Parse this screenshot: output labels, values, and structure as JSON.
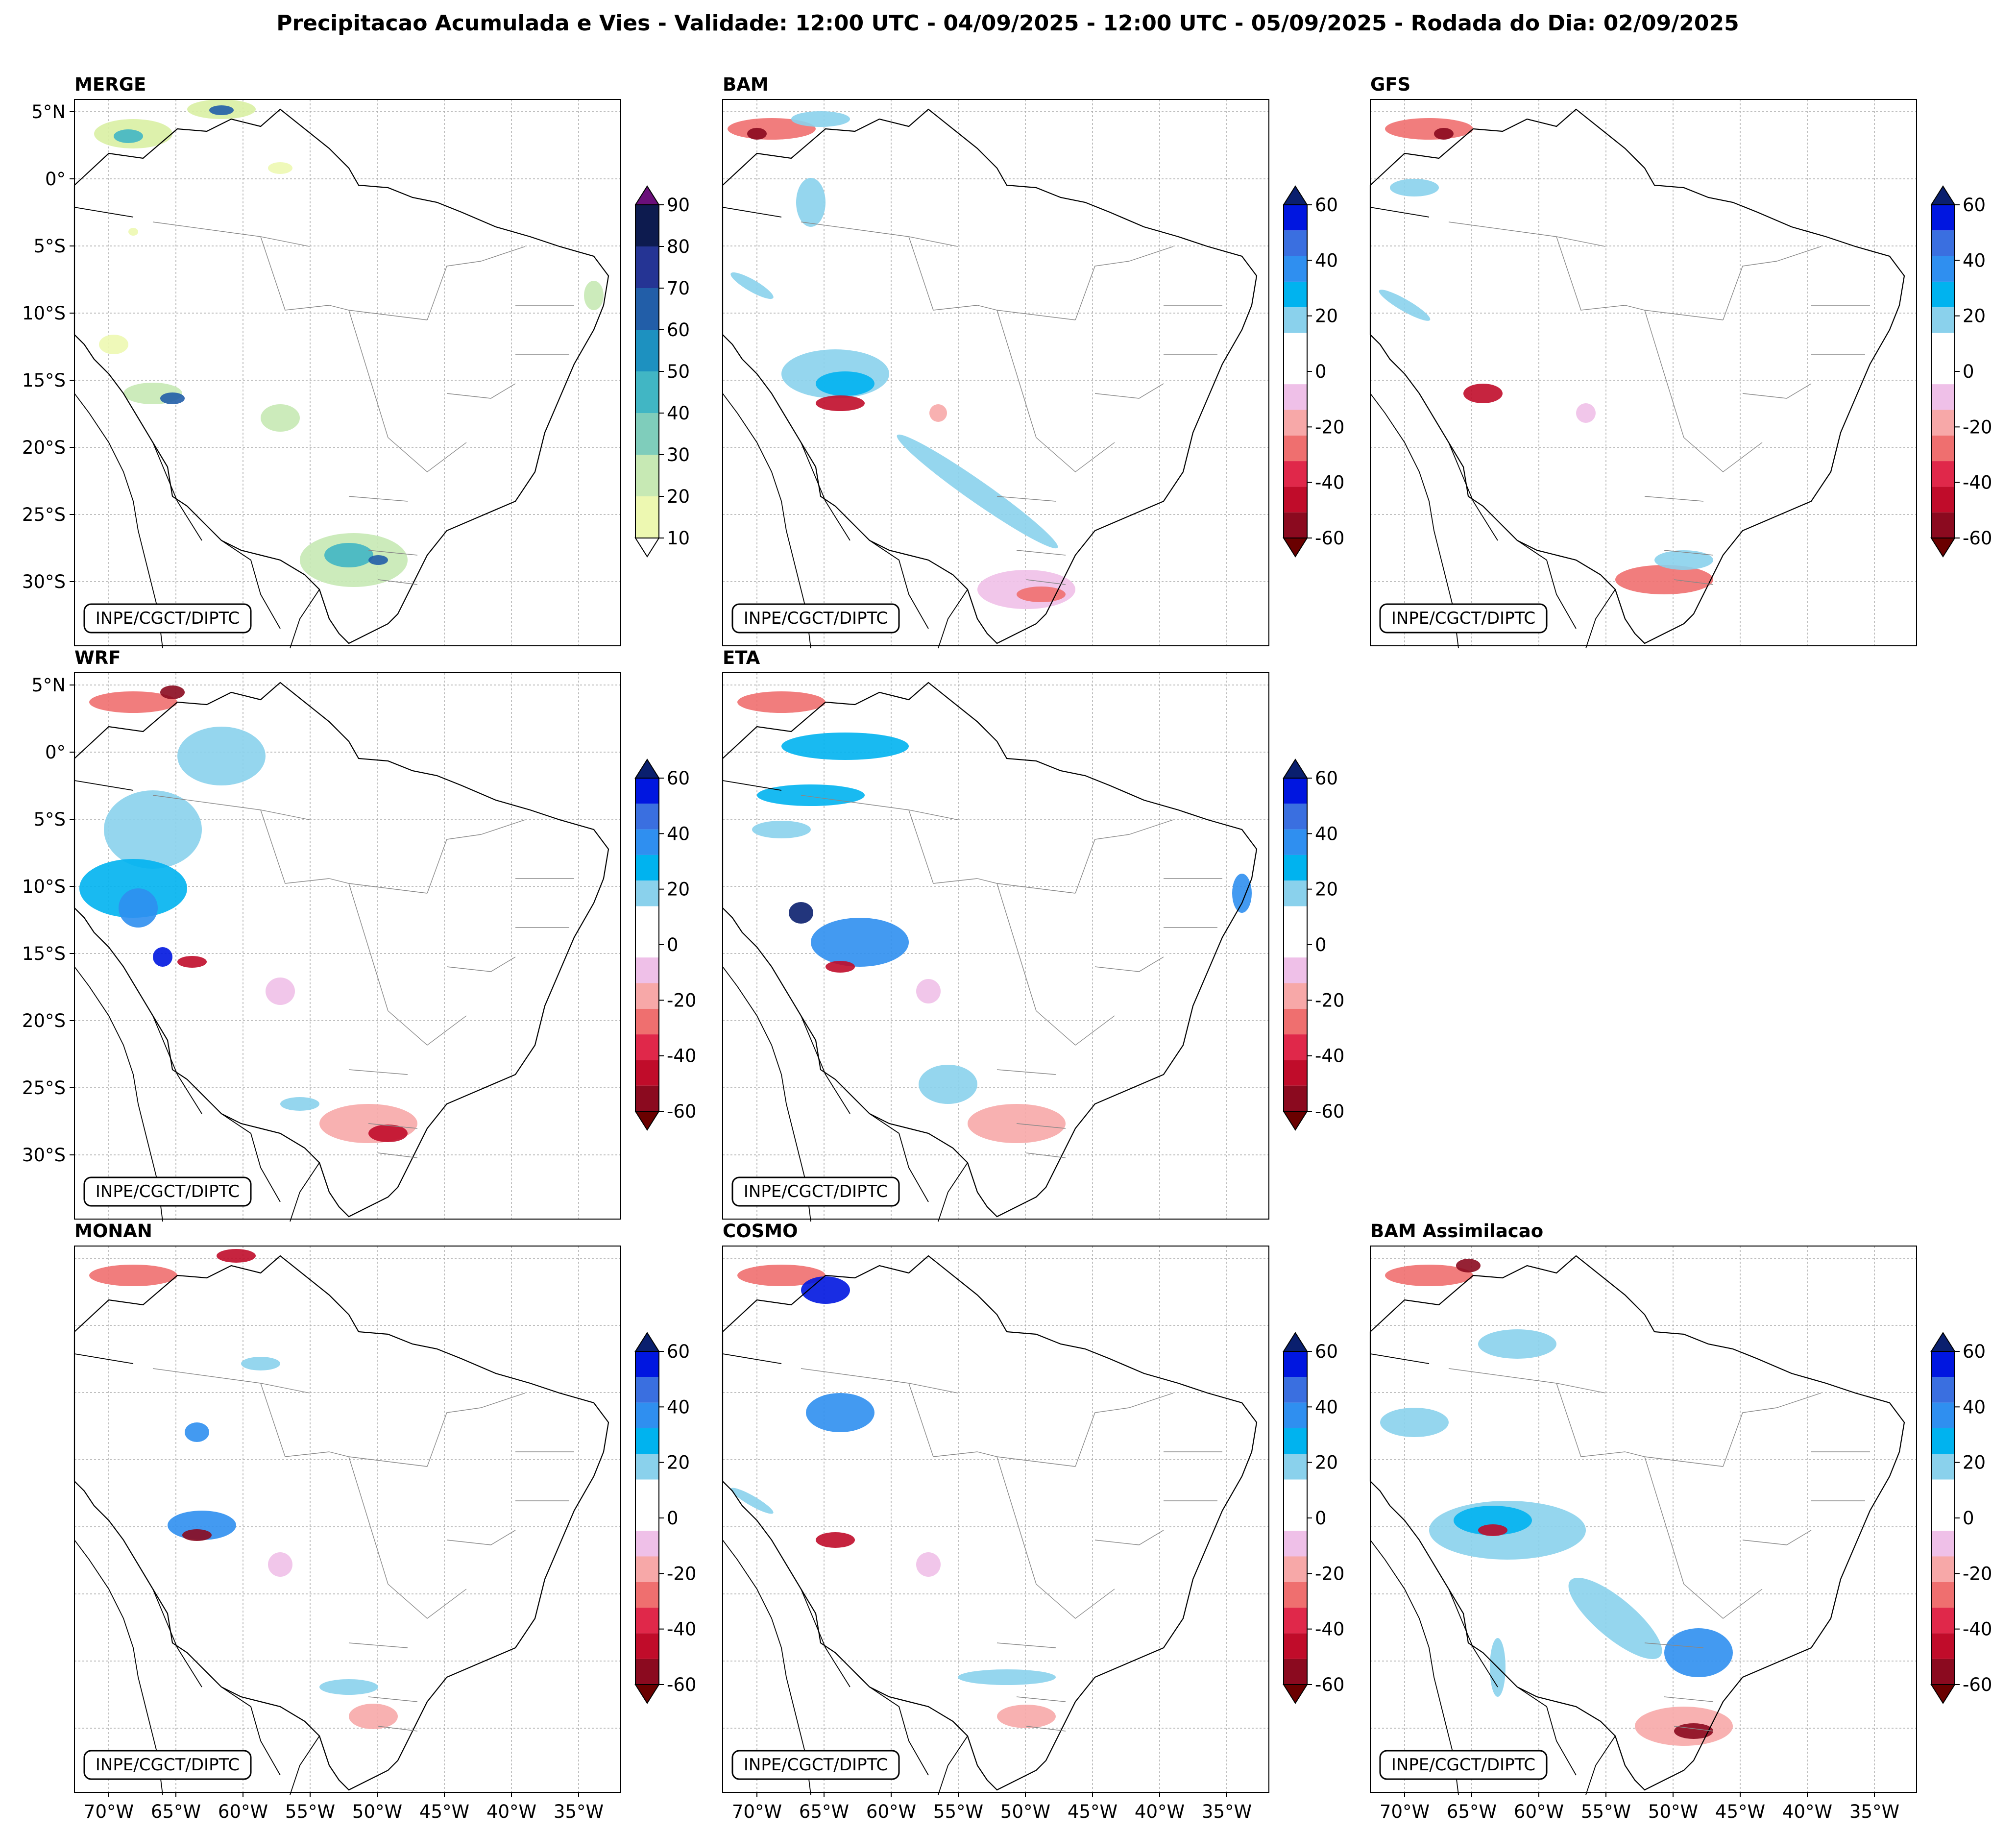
{
  "figure_title": "Precipitacao Acumulada e Vies - Validade: 12:00 UTC - 04/09/2025 - 12:00 UTC - 05/09/2025 - Rodada do Dia: 02/09/2025",
  "credit": "INPE/CGCT/DIPTC",
  "lat_labels": [
    "5°N",
    "0°",
    "5°S",
    "10°S",
    "15°S",
    "20°S",
    "25°S",
    "30°S"
  ],
  "lon_labels": [
    "70°W",
    "65°W",
    "60°W",
    "55°W",
    "50°W",
    "45°W",
    "40°W",
    "35°W"
  ],
  "merge_colorbar": {
    "ticks": [
      "90",
      "80",
      "70",
      "60",
      "50",
      "40",
      "30",
      "20",
      "10"
    ],
    "colors": [
      "#6a0f7a",
      "#0d1b4f",
      "#253494",
      "#225ea8",
      "#1d91c0",
      "#41b6c4",
      "#7fcdbb",
      "#c7e9b4",
      "#edf8b1",
      "#ffffff"
    ]
  },
  "bias_colorbar": {
    "ticks": [
      "60",
      "40",
      "20",
      "0",
      "-20",
      "-40",
      "-60"
    ],
    "colors": [
      "#0a1f6e",
      "#0016e0",
      "#3a6fe0",
      "#2f8ff0",
      "#00b3ef",
      "#8ad1ec",
      "#ffffff",
      "#ffffff",
      "#efc0e8",
      "#f7a8a8",
      "#ef6f6f",
      "#e0284a",
      "#c00c2a",
      "#8b0a1f",
      "#6a0000"
    ]
  },
  "panels": [
    {
      "name": "MERGE",
      "type": "precip"
    },
    {
      "name": "BAM",
      "type": "bias"
    },
    {
      "name": "GFS",
      "type": "bias"
    },
    {
      "name": "WRF",
      "type": "bias"
    },
    {
      "name": "ETA",
      "type": "bias"
    },
    {
      "name": "MONAN",
      "type": "bias"
    },
    {
      "name": "COSMO",
      "type": "bias"
    },
    {
      "name": "BAM Assimilacao",
      "type": "bias"
    }
  ]
}
